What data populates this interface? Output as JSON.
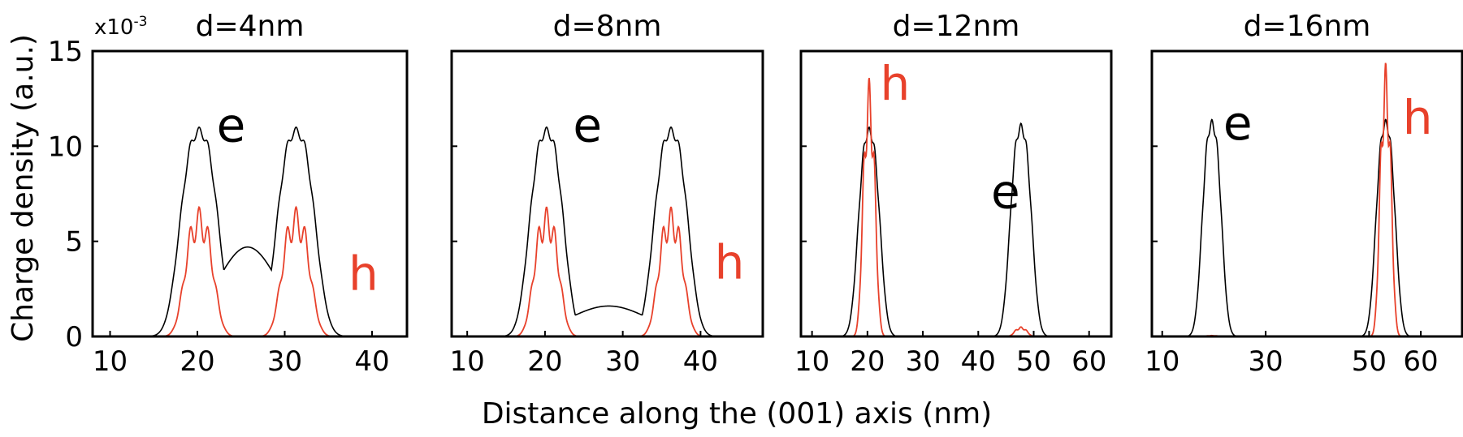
{
  "figure": {
    "ylabel": "Charge density (a.u.)",
    "xlabel": "Distance along the (001) axis (nm)",
    "scale_base": "x10",
    "scale_exp": "-3",
    "colors": {
      "electron": "#000000",
      "hole": "#e8412b",
      "baseline": "#b0b0b0"
    }
  },
  "chart_data": [
    {
      "type": "line",
      "title": "d=4nm",
      "xlim": [
        8,
        44
      ],
      "ylim": [
        0,
        15
      ],
      "xticks": [
        10,
        20,
        30,
        40
      ],
      "yticks": [
        0,
        5,
        10,
        15
      ],
      "series": [
        {
          "name": "e",
          "peaks": [
            [
              20.2,
              11.0
            ],
            [
              31.3,
              11.0
            ]
          ],
          "width": 2.7,
          "ripple": 0.5,
          "min_between": 4.7
        },
        {
          "name": "h",
          "peaks": [
            [
              20.2,
              6.8
            ],
            [
              31.3,
              6.8
            ]
          ],
          "width": 2.0,
          "ripple": 2.6,
          "min_between": 0.0
        }
      ],
      "labels": [
        {
          "text": "e",
          "x": 22.2,
          "y": 11.1
        },
        {
          "text": "h",
          "x": 37.3,
          "y": 3.3
        }
      ]
    },
    {
      "type": "line",
      "title": "d=8nm",
      "xlim": [
        8,
        48
      ],
      "ylim": [
        0,
        15
      ],
      "xticks": [
        10,
        20,
        30,
        40
      ],
      "yticks": [
        0,
        5,
        10,
        15
      ],
      "series": [
        {
          "name": "e",
          "peaks": [
            [
              20.2,
              11.0
            ],
            [
              36.2,
              11.0
            ]
          ],
          "width": 2.7,
          "ripple": 0.5,
          "min_between": 1.6
        },
        {
          "name": "h",
          "peaks": [
            [
              20.2,
              6.8
            ],
            [
              36.2,
              6.8
            ]
          ],
          "width": 2.0,
          "ripple": 2.6,
          "min_between": 0.0
        }
      ],
      "labels": [
        {
          "text": "e",
          "x": 23.6,
          "y": 11.1
        },
        {
          "text": "h",
          "x": 41.8,
          "y": 3.9
        }
      ]
    },
    {
      "type": "line",
      "title": "d=12nm",
      "xlim": [
        8,
        64
      ],
      "ylim": [
        0,
        15
      ],
      "xticks": [
        10,
        20,
        30,
        40,
        50,
        60
      ],
      "yticks": [
        0,
        5,
        10,
        15
      ],
      "series": [
        {
          "name": "e",
          "peaks": [
            [
              20.3,
              11.0
            ],
            [
              47.7,
              11.2
            ]
          ],
          "width": 2.4,
          "ripple": 0.5,
          "min_between": 0.0
        },
        {
          "name": "h",
          "peaks": [
            [
              20.3,
              13.6
            ],
            [
              47.7,
              0.5
            ]
          ],
          "width": 1.4,
          "ripple": 2.6,
          "min_between": 0.0
        }
      ],
      "labels": [
        {
          "text": "h",
          "x": 22.3,
          "y": 13.3
        },
        {
          "text": "e",
          "x": 42.3,
          "y": 7.6
        }
      ]
    },
    {
      "type": "line",
      "title": "d=16nm",
      "xlim": [
        8,
        68
      ],
      "ylim": [
        0,
        15
      ],
      "xticks": [
        10,
        30,
        50,
        60
      ],
      "yticks": [
        0,
        5,
        10,
        15
      ],
      "series": [
        {
          "name": "e",
          "peaks": [
            [
              19.6,
              11.4
            ],
            [
              53.2,
              11.4
            ]
          ],
          "width": 2.3,
          "ripple": 0.5,
          "min_between": 0.0
        },
        {
          "name": "h",
          "peaks": [
            [
              19.6,
              0.05
            ],
            [
              53.2,
              14.4
            ]
          ],
          "width": 1.4,
          "ripple": 2.6,
          "min_between": 0.0
        }
      ],
      "labels": [
        {
          "text": "e",
          "x": 21.8,
          "y": 11.2
        },
        {
          "text": "h",
          "x": 56.5,
          "y": 11.5
        }
      ]
    }
  ]
}
